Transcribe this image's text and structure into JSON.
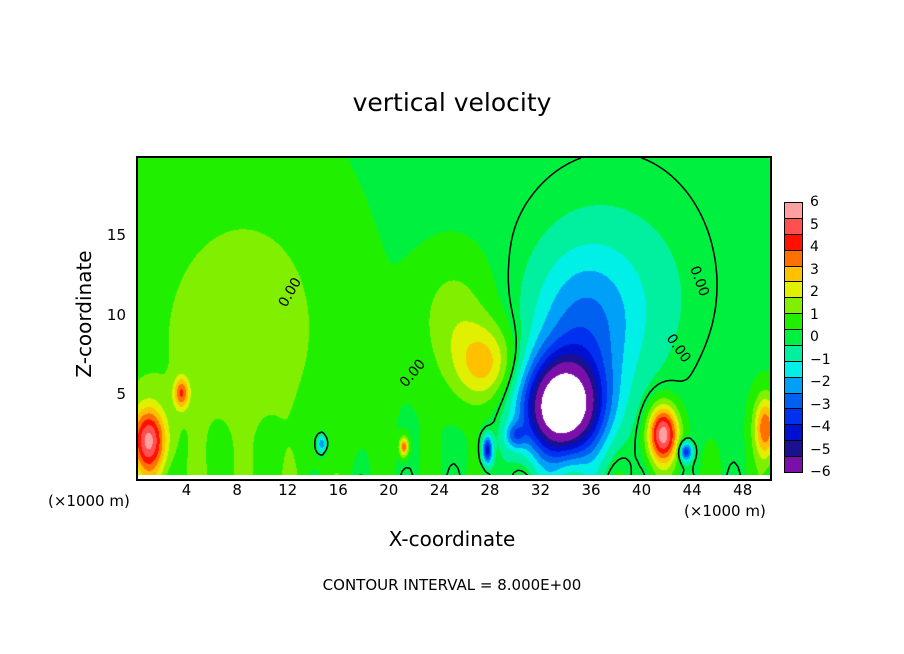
{
  "chart_data": {
    "type": "heatmap",
    "title": "vertical velocity",
    "xlabel": "X-coordinate",
    "ylabel": "Z-coordinate",
    "x_unit": "(×1000 m)",
    "z_unit": "(×1000 m)",
    "xlim": [
      0,
      50
    ],
    "ylim": [
      0,
      20
    ],
    "xticks": [
      "4",
      "8",
      "12",
      "16",
      "20",
      "24",
      "28",
      "32",
      "36",
      "40",
      "44",
      "48"
    ],
    "xtick_values": [
      4,
      8,
      12,
      16,
      20,
      24,
      28,
      32,
      36,
      40,
      44,
      48
    ],
    "yticks": [
      "5",
      "10",
      "15"
    ],
    "ytick_values": [
      5,
      10,
      15
    ],
    "contour_interval_label": "CONTOUR INTERVAL = 8.000E+00",
    "contour_label": "0.00",
    "colorbar": {
      "labels": [
        "6",
        "5",
        "4",
        "3",
        "2",
        "1",
        "0",
        "−1",
        "−2",
        "−3",
        "−4",
        "−5",
        "−6"
      ],
      "range": [
        -6,
        6
      ],
      "colors": [
        "#7a10a8",
        "#1a1090",
        "#0010d0",
        "#0030f0",
        "#0060f0",
        "#00a0f8",
        "#00f0e8",
        "#00f0a0",
        "#00f040",
        "#20f000",
        "#80f000",
        "#e0f000",
        "#ffc000",
        "#ff7000",
        "#ff1000",
        "#ff5050",
        "#ffa0a0"
      ]
    },
    "features": [
      {
        "x": 33.5,
        "z": 4.2,
        "amp": -8,
        "rx": 3.2,
        "rz": 3.2
      },
      {
        "x": 35,
        "z": 9,
        "amp": -2.2,
        "rx": 4,
        "rz": 5
      },
      {
        "x": 27.5,
        "z": 7,
        "amp": 2.4,
        "rx": 2.5,
        "rz": 2.5
      },
      {
        "x": 25,
        "z": 10,
        "amp": 1.2,
        "rx": 3,
        "rz": 4
      },
      {
        "x": 41.5,
        "z": 2.6,
        "amp": 5.5,
        "rx": 1.2,
        "rz": 1.8
      },
      {
        "x": 0.8,
        "z": 2.2,
        "amp": 4.5,
        "rx": 1.3,
        "rz": 2
      },
      {
        "x": 3.4,
        "z": 5.2,
        "amp": 3,
        "rx": 0.6,
        "rz": 1
      },
      {
        "x": 49.6,
        "z": 3,
        "amp": 3.5,
        "rx": 0.9,
        "rz": 2
      },
      {
        "x": 27.6,
        "z": 1.6,
        "amp": -4.5,
        "rx": 0.4,
        "rz": 0.9
      },
      {
        "x": 14.5,
        "z": 2,
        "amp": -3,
        "rx": 0.4,
        "rz": 0.6
      },
      {
        "x": 21,
        "z": 1.8,
        "amp": 3.5,
        "rx": 0.35,
        "rz": 0.6
      },
      {
        "x": 43.3,
        "z": 1.5,
        "amp": -4,
        "rx": 0.5,
        "rz": 0.6
      },
      {
        "x": 29.8,
        "z": 2.5,
        "amp": -2,
        "rx": 0.8,
        "rz": 0.8
      },
      {
        "x": 38,
        "z": 11,
        "amp": -1,
        "rx": 6,
        "rz": 6
      },
      {
        "x": 10,
        "z": 10,
        "amp": 0.8,
        "rx": 8,
        "rz": 10
      }
    ]
  }
}
